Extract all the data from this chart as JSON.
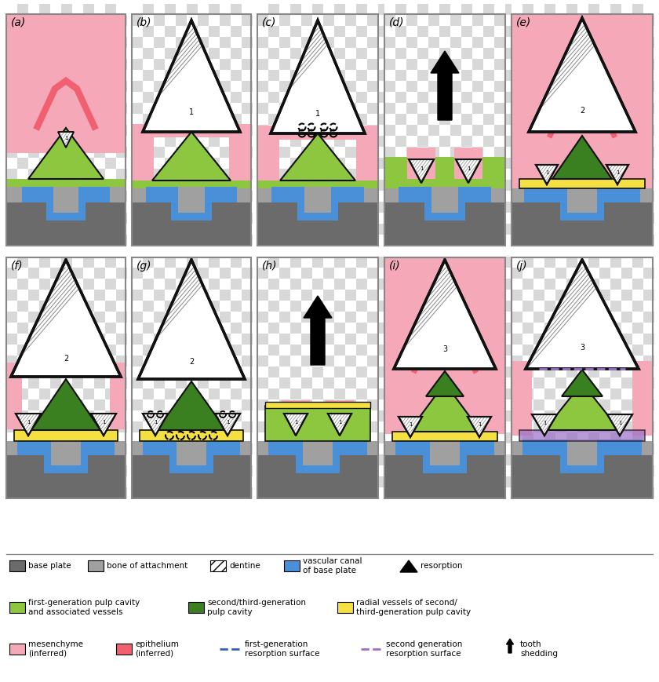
{
  "colors": {
    "dark_gray": "#6b6b6b",
    "mid_gray": "#a0a0a0",
    "light_gray": "#c8c8c8",
    "blue": "#4a90d9",
    "gen1_green": "#8dc63f",
    "gen2_green": "#3a8020",
    "yellow": "#f5e042",
    "pink_light": "#f5a8b8",
    "pink_dark": "#f06070",
    "purple": "#9b6fc8",
    "black": "#111111",
    "white": "#ffffff",
    "outline": "#111111",
    "checker1": "#d8d8d8",
    "checker2": "#ffffff"
  },
  "panel_labels": [
    "(a)",
    "(b)",
    "(c)",
    "(d)",
    "(e)",
    "(f)",
    "(g)",
    "(h)",
    "(i)",
    "(j)"
  ]
}
